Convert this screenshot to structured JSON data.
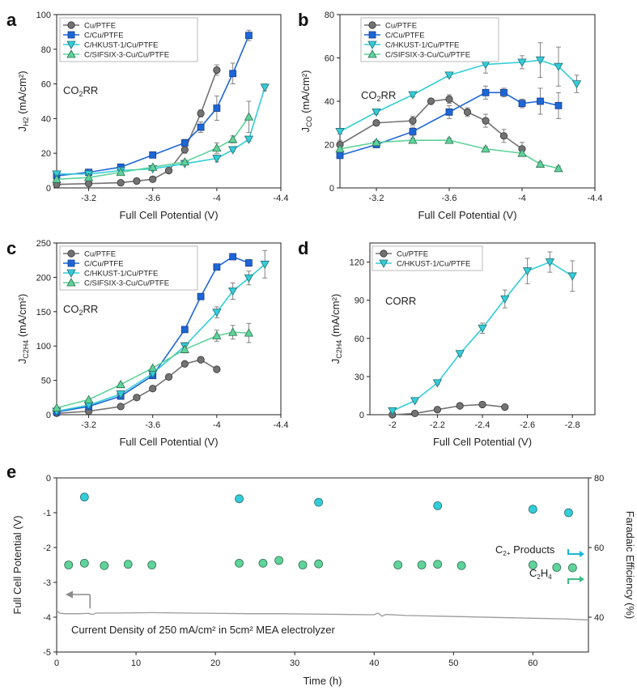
{
  "chart_data": [
    {
      "id": "a",
      "type": "line",
      "panel_label": "a",
      "xlabel": "Full Cell Potential (V)",
      "ylabel": "J_H2 (mA/cm²)",
      "ylabel_main": "J",
      "ylabel_sub": "H2",
      "ylabel_unit": " (mA/cm²)",
      "xlim": [
        -3.0,
        -4.4
      ],
      "ylim": [
        0,
        100
      ],
      "xticks": [
        -3.2,
        -3.6,
        -4,
        -4.4
      ],
      "xtick_labels": [
        "-3.2",
        "-3.6",
        "-4",
        "-4.4"
      ],
      "yticks": [
        0,
        20,
        40,
        60,
        80,
        100
      ],
      "ytick_labels": [
        "0",
        "20",
        "40",
        "60",
        "80",
        "100"
      ],
      "annotation_main": "CO",
      "annotation_sub": "2",
      "annotation_tail": "RR",
      "series": [
        {
          "name": "Cu/PTFE",
          "style": "gray",
          "x": [
            -3.0,
            -3.2,
            -3.4,
            -3.5,
            -3.6,
            -3.7,
            -3.8,
            -3.9,
            -4.0
          ],
          "y": [
            2,
            2.5,
            3,
            4,
            5,
            10,
            22,
            43,
            68
          ],
          "err": [
            0,
            0,
            0,
            0,
            0,
            1,
            2,
            2,
            3
          ]
        },
        {
          "name": "C/Cu/PTFE",
          "style": "blue",
          "x": [
            -3.0,
            -3.2,
            -3.4,
            -3.6,
            -3.8,
            -3.9,
            -4.0,
            -4.1,
            -4.2
          ],
          "y": [
            7,
            9,
            12,
            19,
            26,
            35,
            46,
            66,
            88
          ],
          "err": [
            0,
            0,
            0,
            1,
            2,
            3,
            7,
            6,
            3
          ]
        },
        {
          "name": "C/HKUST-1/Cu/PTFE",
          "style": "cyan",
          "x": [
            -3.0,
            -3.2,
            -3.4,
            -3.6,
            -3.8,
            -4.0,
            -4.1,
            -4.2,
            -4.3
          ],
          "y": [
            8,
            8,
            10,
            11,
            14,
            17,
            22,
            28,
            58
          ],
          "err": [
            0,
            0,
            0,
            0,
            0,
            2,
            1,
            1,
            2
          ]
        },
        {
          "name": "C/SIFSIX-3-Cu/Cu/PTFE",
          "style": "green",
          "x": [
            -3.0,
            -3.2,
            -3.4,
            -3.6,
            -3.8,
            -4.0,
            -4.1,
            -4.2
          ],
          "y": [
            5,
            6,
            9,
            12,
            15,
            23,
            28,
            41
          ],
          "err": [
            0,
            0,
            0,
            0,
            1,
            3,
            2,
            9
          ]
        }
      ]
    },
    {
      "id": "b",
      "type": "line",
      "panel_label": "b",
      "xlabel": "Full Cell Potential (V)",
      "ylabel": "J_CO (mA/cm²)",
      "ylabel_main": "J",
      "ylabel_sub": "CO",
      "ylabel_unit": " (mA/cm²)",
      "xlim": [
        -3.0,
        -4.4
      ],
      "ylim": [
        0,
        80
      ],
      "xticks": [
        -3.2,
        -3.6,
        -4,
        -4.4
      ],
      "xtick_labels": [
        "-3.2",
        "-3.6",
        "-4",
        "-4.4"
      ],
      "yticks": [
        0,
        20,
        40,
        60,
        80
      ],
      "ytick_labels": [
        "0",
        "20",
        "40",
        "60",
        "80"
      ],
      "annotation_main": "CO",
      "annotation_sub": "2",
      "annotation_tail": "RR",
      "series": [
        {
          "name": "Cu/PTFE",
          "style": "gray",
          "x": [
            -3.0,
            -3.2,
            -3.4,
            -3.5,
            -3.6,
            -3.7,
            -3.8,
            -3.9,
            -4.0
          ],
          "y": [
            20,
            30,
            31,
            40,
            41,
            35,
            31,
            24,
            18
          ],
          "err": [
            2,
            1,
            2,
            1,
            2,
            2,
            3,
            3,
            3
          ]
        },
        {
          "name": "C/Cu/PTFE",
          "style": "blue",
          "x": [
            -3.0,
            -3.2,
            -3.4,
            -3.6,
            -3.8,
            -3.9,
            -4.0,
            -4.1,
            -4.2
          ],
          "y": [
            15,
            20,
            26,
            35,
            44,
            44,
            39,
            40,
            38
          ],
          "err": [
            1,
            1,
            2,
            3,
            3,
            2,
            2,
            6,
            6
          ]
        },
        {
          "name": "C/HKUST-1/Cu/PTFE",
          "style": "cyan",
          "x": [
            -3.0,
            -3.2,
            -3.4,
            -3.6,
            -3.8,
            -4.0,
            -4.1,
            -4.2,
            -4.3
          ],
          "y": [
            26,
            35,
            43,
            52,
            57,
            58,
            59,
            56,
            48
          ],
          "err": [
            1,
            1,
            1,
            1,
            4,
            3,
            8,
            9,
            4
          ]
        },
        {
          "name": "C/SIFSIX-3-Cu/Cu/PTFE",
          "style": "green",
          "x": [
            -3.0,
            -3.2,
            -3.4,
            -3.6,
            -3.8,
            -4.0,
            -4.1,
            -4.2
          ],
          "y": [
            18,
            21,
            22,
            22,
            18,
            16,
            11,
            9
          ],
          "err": [
            1,
            1,
            1,
            1,
            1,
            1,
            1,
            1
          ]
        }
      ]
    },
    {
      "id": "c",
      "type": "line",
      "panel_label": "c",
      "xlabel": "Full Cell Potential (V)",
      "ylabel": "J_C2H4 (mA/cm²)",
      "ylabel_main": "J",
      "ylabel_sub": "C2H4",
      "ylabel_unit": " (mA/cm²)",
      "xlim": [
        -3.0,
        -4.4
      ],
      "ylim": [
        0,
        250
      ],
      "xticks": [
        -3.2,
        -3.6,
        -4,
        -4.4
      ],
      "xtick_labels": [
        "-3.2",
        "-3.6",
        "-4",
        "-4.4"
      ],
      "yticks": [
        0,
        50,
        100,
        150,
        200,
        250
      ],
      "ytick_labels": [
        "0",
        "50",
        "100",
        "150",
        "200",
        "250"
      ],
      "annotation_main": "CO",
      "annotation_sub": "2",
      "annotation_tail": "RR",
      "series": [
        {
          "name": "Cu/PTFE",
          "style": "gray",
          "x": [
            -3.0,
            -3.2,
            -3.4,
            -3.5,
            -3.6,
            -3.7,
            -3.8,
            -3.9,
            -4.0
          ],
          "y": [
            2,
            5,
            12,
            25,
            38,
            55,
            74,
            80,
            66
          ],
          "err": [
            0,
            0,
            1,
            1,
            2,
            2,
            3,
            3,
            2
          ]
        },
        {
          "name": "C/Cu/PTFE",
          "style": "blue",
          "x": [
            -3.0,
            -3.2,
            -3.4,
            -3.6,
            -3.8,
            -3.9,
            -4.0,
            -4.1,
            -4.2
          ],
          "y": [
            4,
            12,
            27,
            57,
            124,
            172,
            215,
            230,
            221
          ],
          "err": [
            1,
            1,
            2,
            3,
            3,
            3,
            4,
            4,
            5
          ]
        },
        {
          "name": "C/HKUST-1/Cu/PTFE",
          "style": "cyan",
          "x": [
            -3.0,
            -3.2,
            -3.4,
            -3.6,
            -3.8,
            -4.0,
            -4.1,
            -4.2,
            -4.3
          ],
          "y": [
            5,
            14,
            30,
            60,
            100,
            149,
            180,
            199,
            219
          ],
          "err": [
            1,
            1,
            2,
            2,
            5,
            8,
            12,
            10,
            20
          ]
        },
        {
          "name": "C/SIFSIX-3-Cu/Cu/PTFE",
          "style": "green",
          "x": [
            -3.0,
            -3.2,
            -3.4,
            -3.6,
            -3.8,
            -4.0,
            -4.1,
            -4.2
          ],
          "y": [
            10,
            22,
            44,
            68,
            95,
            115,
            120,
            119
          ],
          "err": [
            1,
            1,
            2,
            2,
            5,
            8,
            10,
            14
          ]
        }
      ]
    },
    {
      "id": "d",
      "type": "line",
      "panel_label": "d",
      "xlabel": "Full Cell Potential (V)",
      "ylabel": "J_C2H4 (mA/cm²)",
      "ylabel_main": "J",
      "ylabel_sub": "C2H4",
      "ylabel_unit": " (mA/cm²)",
      "xlim": [
        -1.9,
        -2.9
      ],
      "ylim": [
        0,
        135
      ],
      "xticks": [
        -2,
        -2.2,
        -2.4,
        -2.6,
        -2.8
      ],
      "xtick_labels": [
        "-2",
        "-2.2",
        "-2.4",
        "-2.6",
        "-2.8"
      ],
      "yticks": [
        0,
        30,
        60,
        90,
        120
      ],
      "ytick_labels": [
        "0",
        "30",
        "60",
        "90",
        "120"
      ],
      "annotation_main": "CORR",
      "annotation_sub": "",
      "annotation_tail": "",
      "series": [
        {
          "name": "Cu/PTFE",
          "style": "gray",
          "x": [
            -2.0,
            -2.1,
            -2.2,
            -2.3,
            -2.4,
            -2.5
          ],
          "y": [
            0,
            1,
            4,
            7,
            8,
            6
          ],
          "err": [
            0,
            0,
            0,
            0,
            1,
            0
          ]
        },
        {
          "name": "C/HKUST-1/Cu/PTFE",
          "style": "cyan",
          "x": [
            -2.0,
            -2.1,
            -2.2,
            -2.3,
            -2.4,
            -2.5,
            -2.6,
            -2.7,
            -2.8
          ],
          "y": [
            3,
            11,
            25,
            48,
            68,
            91,
            113,
            120,
            109
          ],
          "err": [
            0,
            1,
            1,
            2,
            4,
            7,
            10,
            8,
            12
          ]
        }
      ]
    },
    {
      "id": "e",
      "type": "scatter",
      "panel_label": "e",
      "xlabel": "Time (h)",
      "ylabel": "Full Cell Potential (V)",
      "y2label": "Faradaic Efficiency (%)",
      "xlim": [
        0,
        67
      ],
      "ylim": [
        -5,
        0
      ],
      "y2lim": [
        30,
        80
      ],
      "xticks": [
        0,
        10,
        20,
        30,
        40,
        50,
        60
      ],
      "xtick_labels": [
        "0",
        "10",
        "20",
        "30",
        "40",
        "50",
        "60"
      ],
      "yticks": [
        0,
        -1,
        -2,
        -3,
        -4,
        -5
      ],
      "ytick_labels": [
        "0",
        "-1",
        "-2",
        "-3",
        "-4",
        "-5"
      ],
      "y2ticks": [
        40,
        60,
        80
      ],
      "y2tick_labels": [
        "40",
        "60",
        "80"
      ],
      "annotation": "Current Density of 250 mA/cm² in 5cm² MEA electrolyzer",
      "label_c2_main": "C",
      "label_c2_sub": "2+",
      "label_c2_tail": " Products",
      "label_c2h4_main": "C",
      "label_c2h4_sub1": "2",
      "label_c2h4_mid": "H",
      "label_c2h4_sub2": "4",
      "potential_trace": {
        "x": [
          0,
          0.3,
          1,
          2,
          3,
          4,
          4.5,
          5,
          8,
          12,
          16,
          20,
          24,
          28,
          32,
          36,
          40,
          40.5,
          41,
          41.5,
          44,
          48,
          52,
          56,
          60,
          64,
          67
        ],
        "y": [
          -3.8,
          -3.88,
          -3.9,
          -3.9,
          -3.9,
          -3.89,
          -3.92,
          -3.88,
          -3.88,
          -3.87,
          -3.88,
          -3.89,
          -3.9,
          -3.9,
          -3.91,
          -3.92,
          -3.93,
          -3.88,
          -3.97,
          -3.92,
          -3.95,
          -3.97,
          -3.99,
          -4.01,
          -4.03,
          -4.05,
          -4.08
        ]
      },
      "c2plus_fe": {
        "x": [
          3.5,
          23,
          33,
          48,
          60,
          64.5
        ],
        "y": [
          74.5,
          74,
          73,
          72,
          71,
          70
        ]
      },
      "c2h4_fe": {
        "x": [
          1.5,
          3.5,
          6,
          9,
          12,
          23,
          26,
          28,
          31,
          33,
          43,
          46,
          48,
          51,
          60,
          63,
          65
        ],
        "y": [
          55,
          55.5,
          54.8,
          55.2,
          55,
          55.5,
          55.5,
          56.3,
          55,
          55.3,
          55,
          55,
          55.2,
          54.8,
          55,
          54.3,
          54.2
        ]
      }
    }
  ],
  "colors": {
    "gray": "#737373",
    "blue": "#1d66d6",
    "cyan": "#32cdd8",
    "green": "#5fd39a",
    "trace": "#9a9a9a",
    "c2plus_arrow": "#19b8d6",
    "c2h4_arrow": "#3dbb86"
  }
}
